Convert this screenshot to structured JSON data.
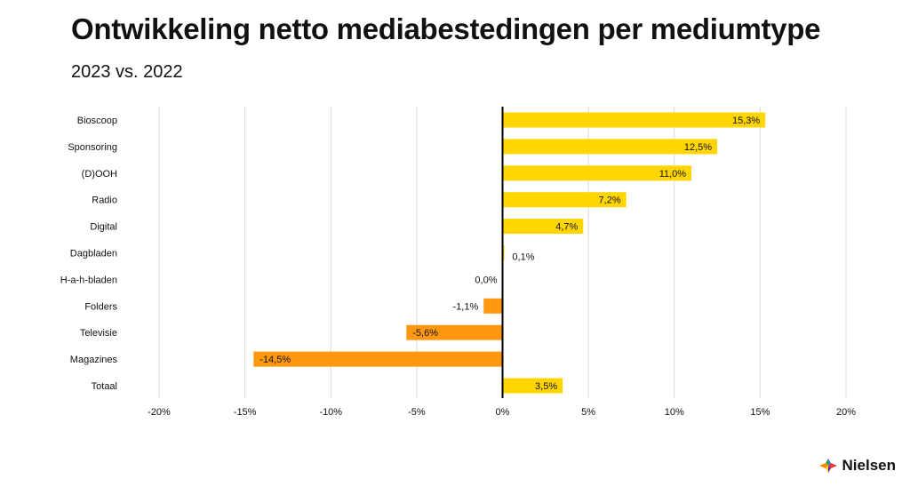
{
  "header": {
    "title": "Ontwikkeling netto mediabestedingen per mediumtype",
    "subtitle": "2023 vs. 2022"
  },
  "brand": {
    "name": "Nielsen",
    "logo_icon": "nielsen-star-icon"
  },
  "colors": {
    "positive": "#FFD600",
    "negative": "#FF9810",
    "grid": "#d9d9d9",
    "axis": "#000000"
  },
  "chart_data": {
    "type": "bar",
    "orientation": "horizontal",
    "categories": [
      "Bioscoop",
      "Sponsoring",
      "(D)OOH",
      "Radio",
      "Digital",
      "Dagbladen",
      "H-a-h-bladen",
      "Folders",
      "Televisie",
      "Magazines",
      "Totaal"
    ],
    "values": [
      15.3,
      12.5,
      11.0,
      7.2,
      4.7,
      0.1,
      0.0,
      -1.1,
      -5.6,
      -14.5,
      3.5
    ],
    "value_labels": [
      "15,3%",
      "12,5%",
      "11,0%",
      "7,2%",
      "4,7%",
      "0,1%",
      "0,0%",
      "-1,1%",
      "-5,6%",
      "-14,5%",
      "3,5%"
    ],
    "xlim": [
      -20,
      20
    ],
    "xticks": [
      -20,
      -15,
      -10,
      -5,
      0,
      5,
      10,
      15,
      20
    ],
    "xtick_labels": [
      "-20%",
      "-15%",
      "-10%",
      "-5%",
      "0%",
      "5%",
      "10%",
      "15%",
      "20%"
    ],
    "grid": "vertical",
    "legend": "none"
  }
}
